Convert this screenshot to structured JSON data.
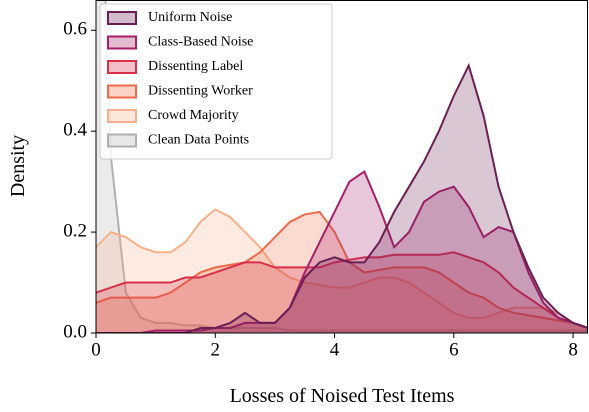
{
  "chart_data": {
    "type": "kde",
    "x_label": "Losses of Noised Test Items",
    "y_label": "Density",
    "xlim": [
      0,
      8.25
    ],
    "ylim": [
      0,
      0.66
    ],
    "xticks": [
      0,
      2,
      4,
      6,
      8
    ],
    "yticks": [
      {
        "value": 0,
        "label": "0.0"
      },
      {
        "value": 0.2,
        "label": "0.2"
      },
      {
        "value": 0.4,
        "label": "0.4"
      },
      {
        "value": 0.6,
        "label": "0.6"
      }
    ],
    "legend": "upper left",
    "x": [
      0,
      0.25,
      0.5,
      0.75,
      1,
      1.25,
      1.5,
      1.75,
      2,
      2.25,
      2.5,
      2.75,
      3,
      3.25,
      3.5,
      3.75,
      4,
      4.25,
      4.5,
      4.75,
      5,
      5.25,
      5.5,
      5.75,
      6,
      6.25,
      6.5,
      6.75,
      7,
      7.25,
      7.5,
      7.75,
      8,
      8.25
    ],
    "series": [
      {
        "name": "Uniform Noise",
        "color": "#6b1f55",
        "values": [
          0,
          0,
          0,
          0,
          0,
          0,
          0,
          0.01,
          0.01,
          0.02,
          0.04,
          0.02,
          0.02,
          0.05,
          0.11,
          0.14,
          0.15,
          0.14,
          0.14,
          0.18,
          0.24,
          0.29,
          0.34,
          0.4,
          0.47,
          0.53,
          0.43,
          0.29,
          0.2,
          0.13,
          0.07,
          0.04,
          0.02,
          0.01
        ]
      },
      {
        "name": "Class-Based Noise",
        "color": "#a6206a",
        "values": [
          0,
          0,
          0,
          0,
          0.005,
          0.005,
          0.005,
          0.005,
          0.01,
          0.01,
          0.02,
          0.02,
          0.02,
          0.05,
          0.12,
          0.18,
          0.24,
          0.3,
          0.32,
          0.25,
          0.17,
          0.2,
          0.26,
          0.28,
          0.29,
          0.25,
          0.19,
          0.21,
          0.2,
          0.12,
          0.06,
          0.03,
          0.02,
          0.01
        ]
      },
      {
        "name": "Dissenting Label",
        "color": "#d9304a",
        "values": [
          0.08,
          0.09,
          0.1,
          0.1,
          0.1,
          0.1,
          0.11,
          0.11,
          0.12,
          0.13,
          0.14,
          0.14,
          0.13,
          0.13,
          0.13,
          0.13,
          0.14,
          0.145,
          0.15,
          0.15,
          0.155,
          0.155,
          0.155,
          0.155,
          0.16,
          0.15,
          0.14,
          0.12,
          0.09,
          0.07,
          0.05,
          0.03,
          0.02,
          0.01
        ]
      },
      {
        "name": "Dissenting Worker",
        "color": "#ef6a48",
        "values": [
          0.06,
          0.07,
          0.07,
          0.07,
          0.07,
          0.08,
          0.1,
          0.12,
          0.13,
          0.135,
          0.14,
          0.16,
          0.19,
          0.22,
          0.235,
          0.24,
          0.2,
          0.14,
          0.12,
          0.125,
          0.13,
          0.13,
          0.13,
          0.12,
          0.1,
          0.08,
          0.07,
          0.05,
          0.04,
          0.035,
          0.03,
          0.025,
          0.02,
          0.01
        ]
      },
      {
        "name": "Crowd Majority",
        "color": "#f6b088",
        "values": [
          0.17,
          0.2,
          0.19,
          0.17,
          0.16,
          0.16,
          0.18,
          0.22,
          0.245,
          0.23,
          0.2,
          0.17,
          0.13,
          0.11,
          0.1,
          0.095,
          0.09,
          0.09,
          0.1,
          0.11,
          0.11,
          0.1,
          0.08,
          0.06,
          0.04,
          0.03,
          0.03,
          0.04,
          0.05,
          0.05,
          0.05,
          0.04,
          0.02,
          0.01
        ]
      },
      {
        "name": "Clean Data Points",
        "color": "#b0b0b0",
        "values": [
          1.2,
          0.35,
          0.08,
          0.03,
          0.02,
          0.02,
          0.015,
          0.015,
          0.01,
          0.01,
          0.01,
          0.01,
          0.01,
          0.005,
          0.005,
          0.005,
          0.005,
          0.005,
          0.005,
          0.005,
          0.005,
          0.005,
          0.005,
          0.005,
          0.005,
          0.005,
          0.005,
          0.005,
          0.005,
          0.005,
          0.005,
          0.005,
          0.005,
          0.005
        ]
      }
    ]
  }
}
